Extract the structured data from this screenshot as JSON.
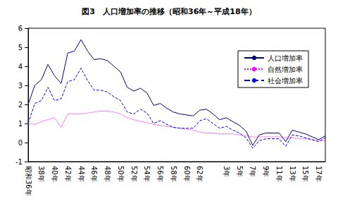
{
  "chart_data": {
    "type": "line",
    "title": "図3　人口増加率の推移（昭和36年～平成18年）",
    "categories": [
      "昭和36年",
      null,
      "38年",
      null,
      "40年",
      null,
      "42年",
      null,
      "44年",
      null,
      "46年",
      null,
      "48年",
      null,
      "50年",
      null,
      "52年",
      null,
      "54年",
      null,
      "56年",
      null,
      "58年",
      null,
      "60年",
      null,
      "62年",
      null,
      null,
      null,
      "3年",
      null,
      "5年",
      null,
      "7年",
      null,
      "9年",
      null,
      "11年",
      null,
      "13年",
      null,
      "15年",
      null,
      "17年",
      null
    ],
    "series": [
      {
        "name": "人口増加率",
        "color": "#000080",
        "line_style": "solid",
        "marker": "none",
        "values": [
          2.0,
          3.0,
          3.3,
          4.1,
          3.5,
          3.1,
          4.7,
          4.8,
          5.4,
          4.8,
          4.35,
          4.4,
          4.3,
          4.0,
          3.7,
          2.9,
          2.7,
          2.85,
          2.6,
          1.95,
          2.05,
          1.8,
          1.6,
          1.5,
          1.45,
          1.4,
          1.7,
          1.75,
          1.5,
          1.2,
          1.3,
          1.1,
          0.9,
          0.6,
          -0.15,
          0.4,
          0.5,
          0.5,
          0.5,
          0.05,
          0.65,
          0.55,
          0.45,
          0.3,
          0.15,
          0.35
        ]
      },
      {
        "name": "自然増加率",
        "color": "#ff00ff",
        "line_style": "dotted",
        "marker": "none",
        "values": [
          1.0,
          0.95,
          1.1,
          1.2,
          1.3,
          0.8,
          1.5,
          1.5,
          1.5,
          1.55,
          1.6,
          1.65,
          1.65,
          1.6,
          1.5,
          1.3,
          1.2,
          1.1,
          1.05,
          0.95,
          0.9,
          0.85,
          0.8,
          0.75,
          0.7,
          0.65,
          0.55,
          0.5,
          0.5,
          0.45,
          0.45,
          0.45,
          0.4,
          0.35,
          0.3,
          0.3,
          0.3,
          0.3,
          0.3,
          0.25,
          0.25,
          0.2,
          0.2,
          0.15,
          0.1,
          0.1
        ]
      },
      {
        "name": "社会増加率",
        "color": "#0000ff",
        "line_style": "dashed",
        "marker": "none",
        "values": [
          1.0,
          2.05,
          2.2,
          2.9,
          2.2,
          2.3,
          3.2,
          3.3,
          3.9,
          3.25,
          2.75,
          2.75,
          2.65,
          2.4,
          2.2,
          1.6,
          1.5,
          1.75,
          1.55,
          1.0,
          1.15,
          0.95,
          0.8,
          0.75,
          0.75,
          0.75,
          1.15,
          1.25,
          1.0,
          0.75,
          0.85,
          0.65,
          0.5,
          0.25,
          -0.3,
          0.1,
          0.2,
          0.2,
          0.2,
          -0.2,
          0.4,
          0.35,
          0.25,
          0.15,
          0.05,
          0.25
        ]
      }
    ],
    "ylim": [
      -1,
      6
    ],
    "yticks": [
      -1,
      0,
      1,
      2,
      3,
      4,
      5,
      6
    ],
    "grid": false,
    "legend": "upper right"
  }
}
